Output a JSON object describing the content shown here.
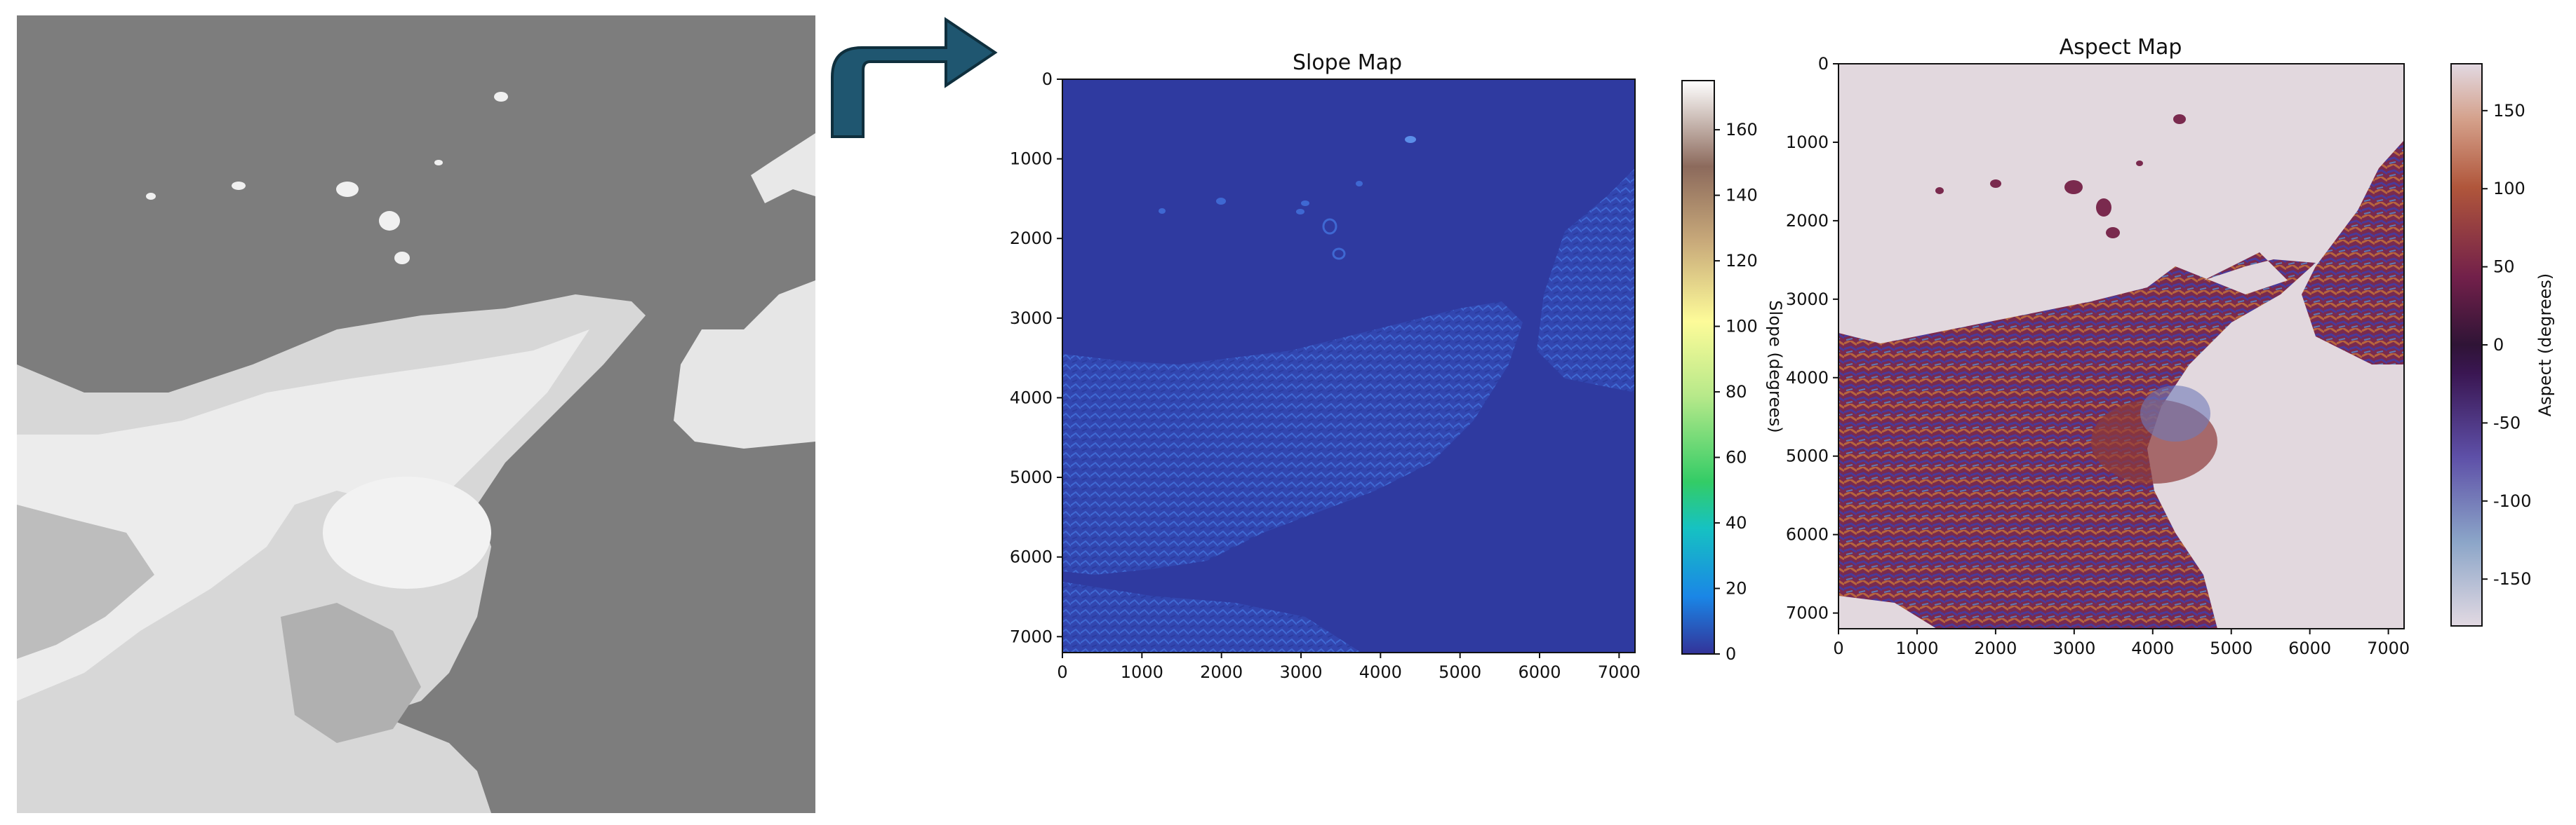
{
  "source_image": {
    "name": "dem-input",
    "description_hidden": true
  },
  "arrow": {
    "color": "#1f5670",
    "outline": "#0f2f3d"
  },
  "chart_data": [
    {
      "type": "heatmap",
      "title": "Slope Map",
      "xlabel": "",
      "ylabel": "",
      "xlim": [
        0,
        7200
      ],
      "ylim": [
        7200,
        0
      ],
      "xticks": [
        0,
        1000,
        2000,
        3000,
        4000,
        5000,
        6000,
        7000
      ],
      "yticks": [
        0,
        1000,
        2000,
        3000,
        4000,
        5000,
        6000,
        7000
      ],
      "colorbar": {
        "label": "Slope (degrees)",
        "range": [
          0,
          175
        ],
        "ticks": [
          0,
          20,
          40,
          60,
          80,
          100,
          120,
          140,
          160
        ],
        "colormap": "terrain",
        "placement": "right"
      },
      "background_color": "#2f3aa0"
    },
    {
      "type": "heatmap",
      "title": "Aspect Map",
      "xlabel": "",
      "ylabel": "",
      "xlim": [
        0,
        7200
      ],
      "ylim": [
        7200,
        0
      ],
      "xticks": [
        0,
        1000,
        2000,
        3000,
        4000,
        5000,
        6000,
        7000
      ],
      "yticks": [
        0,
        1000,
        2000,
        3000,
        4000,
        5000,
        6000,
        7000
      ],
      "colorbar": {
        "label": "Aspect (degrees)",
        "range": [
          -180,
          180
        ],
        "ticks": [
          -150,
          -100,
          -50,
          0,
          50,
          100,
          150
        ],
        "colormap": "twilight",
        "placement": "right"
      },
      "background_color": "#e2d8de"
    }
  ]
}
